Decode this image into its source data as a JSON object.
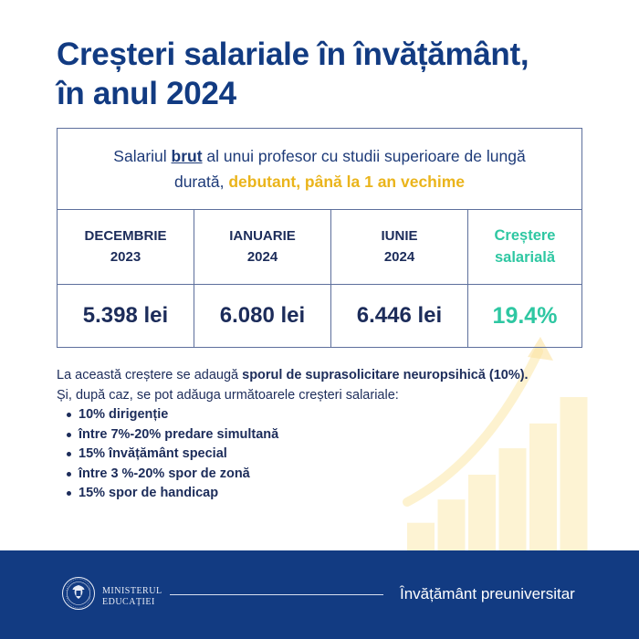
{
  "title": {
    "line1": "Creșteri salariale în învățământ,",
    "line2": "în anul 2024"
  },
  "table": {
    "intro": {
      "part1": "Salariul ",
      "bold": "brut",
      "part2": " al unui profesor cu studii superioare de lungă",
      "part3": "durată, ",
      "highlight": "debutant, până la 1 an vechime"
    },
    "columns": [
      {
        "line1": "DECEMBRIE",
        "line2": "2023",
        "value": "5.398 lei"
      },
      {
        "line1": "IANUARIE",
        "line2": "2024",
        "value": "6.080 lei"
      },
      {
        "line1": "IUNIE",
        "line2": "2024",
        "value": "6.446 lei"
      },
      {
        "line1": "Creștere",
        "line2": "salarială",
        "value": "19.4%"
      }
    ]
  },
  "info": {
    "line1_a": "La această creștere se adaugă ",
    "line1_b": "sporul de suprasolicitare neuropsihică (10%).",
    "line2": "Și, după caz, se pot adăuga următoarele creșteri salariale:",
    "items": [
      "10% dirigenție",
      "între 7%-20% predare simultană",
      "15% învățământ special",
      "între 3 %-20% spor de zonă",
      "15% spor de handicap"
    ]
  },
  "footer": {
    "ministry_line1": "MINISTERUL",
    "ministry_line2": "EDUCAȚIEI",
    "section": "Învățământ preuniversitar",
    "logo_text_top": "GUVERNUL",
    "logo_text_bottom": "ROMÂNIEI"
  },
  "colors": {
    "title_blue": "#123b82",
    "text_navy": "#1c2c5a",
    "highlight_yellow": "#eab41b",
    "growth_green": "#2ec7a2",
    "footer_blue": "#123b82",
    "decor_bars": "#fdf3d3"
  },
  "decoration": {
    "bar_levels": [
      0.19,
      0.34,
      0.5,
      0.67,
      0.83,
      1.0
    ]
  }
}
